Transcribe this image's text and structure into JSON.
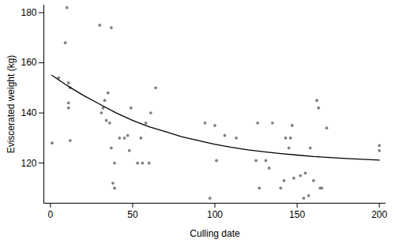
{
  "chart_data": {
    "type": "scatter",
    "x_label": "Culling date",
    "y_label": "Eviscerated weight (kg)",
    "xlim": [
      -4,
      204
    ],
    "ylim": [
      104,
      183
    ],
    "xticks": [
      0,
      50,
      100,
      150,
      200
    ],
    "yticks": [
      120,
      140,
      160,
      180
    ],
    "grid": false,
    "series": [
      {
        "type": "scatter",
        "marker": "circle",
        "color": "#808080",
        "x": [
          1,
          5,
          9,
          10,
          11,
          11,
          11,
          12,
          12,
          30,
          31,
          32,
          33,
          34,
          35,
          36,
          37,
          37,
          38,
          39,
          39,
          42,
          45,
          47,
          48,
          49,
          53,
          55,
          56,
          58,
          60,
          61,
          64,
          94,
          97,
          100,
          101,
          106,
          113,
          125,
          126,
          127,
          131,
          133,
          135,
          140,
          142,
          143,
          145,
          146,
          147,
          148,
          152,
          154,
          155,
          157,
          158,
          160,
          162,
          163,
          164,
          165,
          168,
          200,
          200
        ],
        "values": [
          128,
          154,
          168,
          182,
          152,
          144,
          142,
          150,
          129,
          175,
          140,
          142,
          145,
          137,
          148,
          136,
          126,
          174,
          112,
          110,
          120,
          130,
          130,
          131,
          125,
          142,
          120,
          130,
          120,
          136,
          120,
          140,
          150,
          136,
          106,
          135,
          121,
          131,
          130,
          121,
          136,
          110,
          121,
          118,
          136,
          110,
          113,
          130,
          126,
          130,
          135,
          114,
          115,
          106,
          116,
          107,
          126,
          113,
          145,
          142,
          110,
          110,
          134,
          127,
          125
        ]
      },
      {
        "type": "line",
        "line_style": "solid",
        "color": "#000000",
        "x": [
          1,
          10,
          20,
          30,
          40,
          50,
          60,
          70,
          80,
          90,
          100,
          110,
          120,
          130,
          140,
          150,
          160,
          170,
          180,
          190,
          200
        ],
        "values": [
          155,
          151,
          147,
          143.5,
          140,
          137,
          134.5,
          132.5,
          130.5,
          129,
          127.5,
          126.3,
          125.3,
          124.5,
          123.8,
          123.2,
          122.6,
          122.2,
          121.8,
          121.5,
          121.2
        ]
      }
    ]
  }
}
